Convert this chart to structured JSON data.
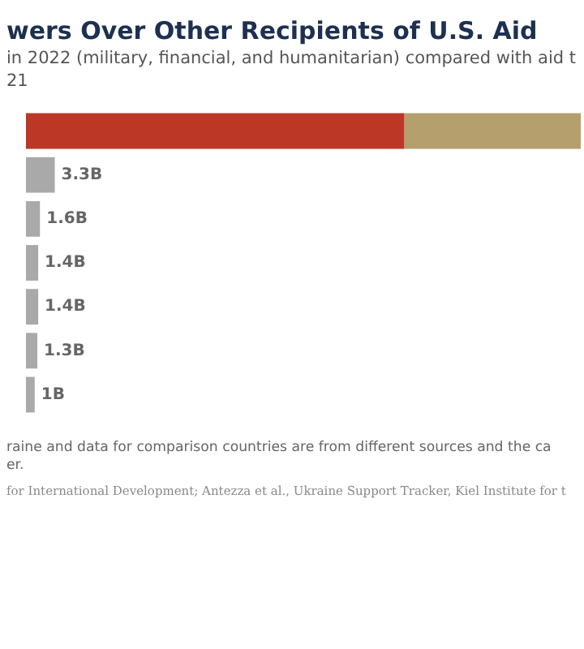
{
  "chart_data": {
    "type": "bar",
    "orientation": "horizontal",
    "stacked": true,
    "title": "wers Over Other Recipients of U.S. Aid",
    "subtitle": "in 2022 (military, financial, and humanitarian) compared with aid t\n21",
    "categories": [
      null,
      null,
      null,
      null,
      null,
      null,
      null
    ],
    "series": [
      {
        "color": "#bc3726",
        "values": [
          43.3,
          null,
          null,
          null,
          null,
          null,
          null
        ]
      },
      {
        "color": "#b59f6d",
        "values": [
          20.2,
          null,
          null,
          null,
          null,
          null,
          null
        ]
      },
      {
        "color": "#a9a9a9",
        "values": [
          null,
          3.3,
          1.6,
          1.4,
          1.4,
          1.3,
          1
        ],
        "value_labels": [
          null,
          "3.3B",
          "1.6B",
          "1.4B",
          "1.4B",
          "1.3B",
          "1B"
        ]
      }
    ],
    "xlim": [
      0,
      63.5
    ],
    "legend": false,
    "annotations": [
      "raine and data for comparison countries are from different sources and the ca\ner.",
      "for International Development; Antezza et al., Ukraine Support Tracker, Kiel Institute for t"
    ]
  }
}
